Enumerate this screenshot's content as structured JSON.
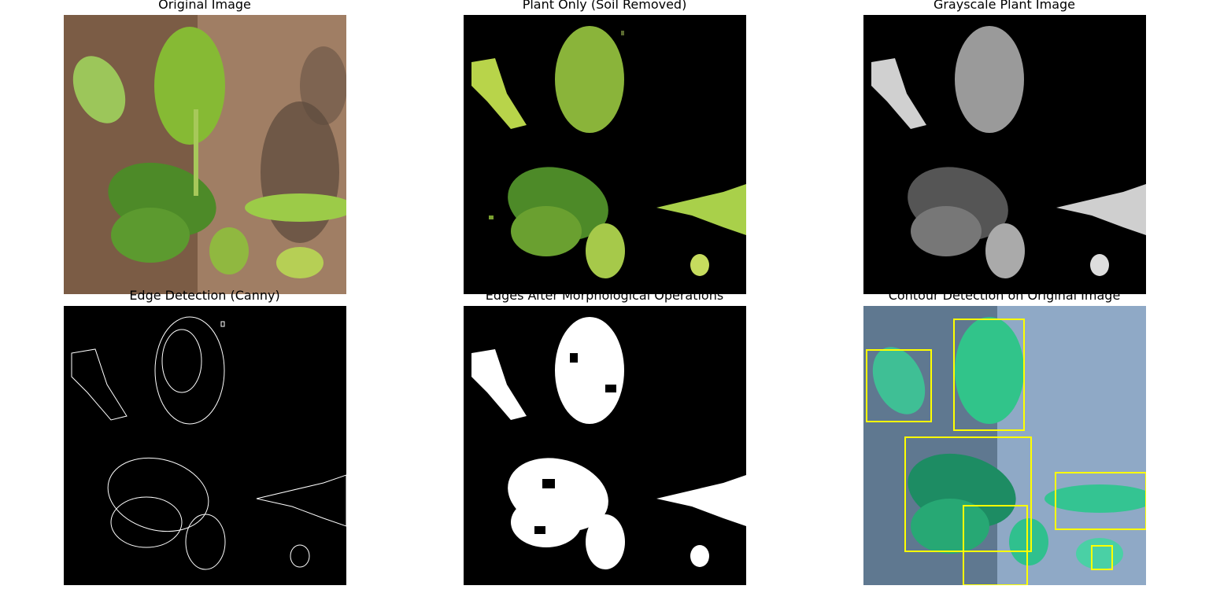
{
  "figure": {
    "panels": [
      {
        "id": "p1",
        "title": "Original Image"
      },
      {
        "id": "p2",
        "title": "Plant Only (Soil Removed)"
      },
      {
        "id": "p3",
        "title": "Grayscale Plant Image"
      },
      {
        "id": "p4",
        "title": "Edge Detection (Canny)"
      },
      {
        "id": "p5",
        "title": "Edges After Morphological Operations"
      },
      {
        "id": "p6",
        "title": "Contour Detection on Original Image"
      }
    ]
  },
  "colors": {
    "soil": "#8a6a50",
    "leaf": "#7fb63a",
    "leaf_dark": "#3e7e24",
    "mask_bg": "#000000",
    "edge": "#ffffff",
    "bbox": "#ffff00",
    "contour_bg": "#6f8da8",
    "contour_leaf": "#2ccf8e"
  }
}
